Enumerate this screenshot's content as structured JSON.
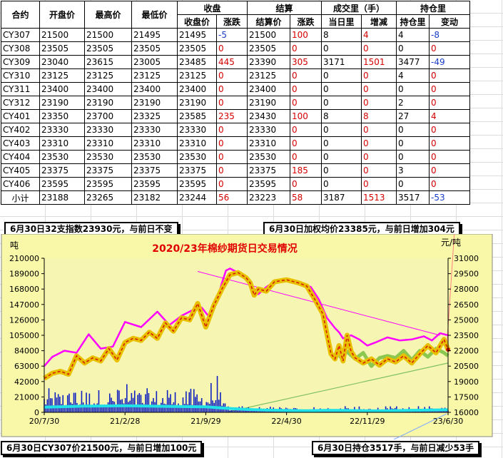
{
  "table": {
    "headers_top": [
      "合约",
      "开盘价",
      "最高价",
      "最低价",
      "收盘",
      "结算",
      "成交里（手）",
      "持仓里"
    ],
    "headers_sub": [
      "收盘价",
      "涨跌",
      "结算价",
      "涨跌",
      "当日里",
      "增减",
      "持仓里",
      "变动"
    ],
    "rows": [
      [
        "CY307",
        "21500",
        "21500",
        "21495",
        "21495",
        "-5",
        "21500",
        "100",
        "8",
        "4",
        "4",
        "-8"
      ],
      [
        "CY308",
        "23505",
        "23505",
        "23505",
        "23505",
        "0",
        "23505",
        "0",
        "0",
        "0",
        "0",
        "0"
      ],
      [
        "CY309",
        "23040",
        "23615",
        "23005",
        "23485",
        "445",
        "23390",
        "305",
        "3171",
        "1501",
        "3477",
        "-49"
      ],
      [
        "CY310",
        "23125",
        "23125",
        "23125",
        "23125",
        "0",
        "23125",
        "0",
        "0",
        "0",
        "4",
        "0"
      ],
      [
        "CY311",
        "23400",
        "23400",
        "23400",
        "23400",
        "0",
        "23400",
        "0",
        "0",
        "0",
        "0",
        "0"
      ],
      [
        "CY312",
        "23190",
        "23190",
        "23190",
        "23190",
        "0",
        "23190",
        "0",
        "0",
        "0",
        "2",
        "0"
      ],
      [
        "CY401",
        "23350",
        "23700",
        "23325",
        "23585",
        "235",
        "23430",
        "100",
        "8",
        "8",
        "27",
        "4"
      ],
      [
        "CY402",
        "23330",
        "23330",
        "23330",
        "23330",
        "0",
        "23330",
        "0",
        "0",
        "0",
        "0",
        "0"
      ],
      [
        "CY403",
        "23310",
        "23310",
        "23310",
        "23310",
        "0",
        "23310",
        "0",
        "0",
        "0",
        "0",
        "0"
      ],
      [
        "CY404",
        "23530",
        "23530",
        "23530",
        "23530",
        "0",
        "23530",
        "0",
        "0",
        "0",
        "0",
        "0"
      ],
      [
        "CY405",
        "23375",
        "23375",
        "23375",
        "23375",
        "0",
        "23375",
        "185",
        "0",
        "0",
        "3",
        "0"
      ],
      [
        "CY406",
        "23595",
        "23595",
        "23595",
        "23595",
        "0",
        "23595",
        "0",
        "0",
        "0",
        "0",
        "0"
      ],
      [
        "小计",
        "23188",
        "23265",
        "23182",
        "23244",
        "56",
        "23223",
        "58",
        "3187",
        "1513",
        "3517",
        "-53"
      ]
    ]
  },
  "boxes": {
    "index": "6月30日32支指数23930元，与前日不变",
    "weighted": "6月30日加权均价23385元，与前日增加304元",
    "cy307": "6月30日CY307价21500元，与前日增加100元",
    "oi": "6月30日持仓3517手，与前日减少53手"
  },
  "chart_data": {
    "type": "line",
    "title": "2020/23年棉纱期货日交易情况",
    "left_axis_unit": "吨",
    "right_axis_unit": "元/吨",
    "left_ylim": [
      0,
      210000
    ],
    "left_ticks": [
      "0",
      "21000",
      "42000",
      "63000",
      "84000",
      "105000",
      "126000",
      "147000",
      "168000",
      "189000",
      "210000"
    ],
    "right_ylim": [
      16000,
      31000
    ],
    "right_ticks": [
      "16000",
      "17500",
      "19000",
      "20500",
      "22000",
      "23500",
      "25000",
      "26500",
      "28000",
      "29500",
      "31000"
    ],
    "x_ticks": [
      "20/7/30",
      "21/2/28",
      "21/9/29",
      "22/4/30",
      "22/11/29",
      "23/6/30"
    ],
    "grid": false,
    "background": "#f8f8a8",
    "colors": {
      "index": "#ff00ff",
      "settle_price": "#e8c000",
      "settle_core": "#d42000",
      "cy307": "#8cc850",
      "volume_bars": "#1020c0",
      "open_interest": "#20e0e8",
      "trend": "#80c060",
      "pointer": "#ff8080"
    },
    "series": [
      {
        "key": "index",
        "x": [
          0,
          0.02,
          0.05,
          0.08,
          0.11,
          0.14,
          0.17,
          0.2,
          0.24,
          0.28,
          0.31,
          0.34,
          0.37,
          0.39,
          0.41,
          0.43,
          0.44,
          0.45,
          0.46,
          0.48,
          0.5,
          0.52,
          0.53,
          0.55,
          0.57,
          0.6,
          0.63,
          0.66,
          0.68,
          0.7,
          0.72,
          0.73,
          0.74,
          0.76,
          0.78,
          0.8,
          0.82,
          0.85,
          0.88,
          0.91,
          0.94,
          0.96,
          0.98,
          1
        ],
        "y": [
          20500,
          21400,
          22000,
          21800,
          23600,
          22200,
          22400,
          24800,
          24300,
          25800,
          24500,
          25400,
          26000,
          26200,
          25200,
          27200,
          28600,
          29800,
          30000,
          29600,
          29000,
          28000,
          27500,
          28200,
          28700,
          28800,
          28700,
          28200,
          27000,
          25200,
          24200,
          23800,
          23200,
          23500,
          23100,
          22500,
          22800,
          23300,
          23000,
          23100,
          23400,
          23000,
          23700,
          23500
        ]
      },
      {
        "key": "settle_price",
        "x": [
          0,
          0.02,
          0.04,
          0.06,
          0.08,
          0.1,
          0.12,
          0.14,
          0.16,
          0.18,
          0.2,
          0.22,
          0.24,
          0.26,
          0.28,
          0.3,
          0.32,
          0.34,
          0.36,
          0.38,
          0.4,
          0.42,
          0.44,
          0.46,
          0.48,
          0.5,
          0.51,
          0.52,
          0.53,
          0.55,
          0.57,
          0.6,
          0.63,
          0.65,
          0.67,
          0.69,
          0.71,
          0.72,
          0.73,
          0.74,
          0.75,
          0.76,
          0.77,
          0.79,
          0.81,
          0.83,
          0.85,
          0.87,
          0.89,
          0.91,
          0.93,
          0.95,
          0.97,
          0.99,
          1
        ],
        "y": [
          19300,
          19800,
          20000,
          19700,
          21500,
          20800,
          21300,
          21000,
          22200,
          21100,
          22800,
          23200,
          23000,
          23800,
          23200,
          24700,
          23900,
          25200,
          25000,
          26600,
          24300,
          26400,
          28000,
          29400,
          29600,
          29100,
          28600,
          27400,
          28000,
          27800,
          28700,
          28900,
          28600,
          28300,
          27000,
          25600,
          21700,
          21200,
          22500,
          21000,
          23500,
          21900,
          21300,
          20800,
          21200,
          20600,
          21200,
          20900,
          21500,
          20800,
          21700,
          22500,
          21800,
          23100,
          22100
        ]
      },
      {
        "key": "cy307",
        "x": [
          0.73,
          0.75,
          0.77,
          0.79,
          0.81,
          0.83,
          0.85,
          0.87,
          0.89,
          0.91,
          0.93,
          0.95,
          0.97,
          0.99,
          1
        ],
        "y": [
          21300,
          21900,
          21200,
          21800,
          20500,
          21300,
          21500,
          21300,
          22000,
          21100,
          22000,
          21400,
          22200,
          21800,
          21500
        ]
      },
      {
        "key": "open_interest",
        "x": [
          0,
          0.1,
          0.2,
          0.3,
          0.4,
          0.45,
          0.5,
          0.55,
          0.6,
          0.65,
          0.7,
          0.75,
          0.8,
          0.85,
          0.9,
          0.95,
          1
        ],
        "y": [
          7000,
          8500,
          9000,
          8200,
          7500,
          5500,
          4000,
          3000,
          2500,
          2200,
          2800,
          2500,
          2000,
          2200,
          2600,
          3000,
          3500
        ]
      }
    ]
  }
}
